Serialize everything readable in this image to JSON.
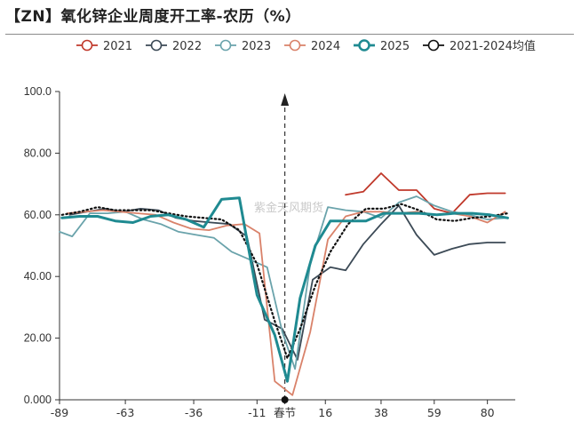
{
  "title": "【ZN】氧化锌企业周度开工率-农历（%）",
  "watermark": "紫金天风期货",
  "chart_data": {
    "type": "line",
    "title": "【ZN】氧化锌企业周度开工率-农历（%）",
    "xlabel": "",
    "ylabel": "",
    "ylim": [
      0,
      100
    ],
    "xlim": [
      -89,
      91
    ],
    "y_ticks": [
      "0.000",
      "20.00",
      "40.00",
      "60.00",
      "80.00",
      "100.0"
    ],
    "x_ticks": [
      "-89",
      "-63",
      "-36",
      "-11",
      "春节",
      "16",
      "38",
      "59",
      "80"
    ],
    "x_tick_values": [
      -89,
      -63,
      -36,
      -11,
      0,
      16,
      38,
      59,
      80
    ],
    "spring_festival_x": 0,
    "legend_position": "top",
    "grid": false,
    "series": [
      {
        "name": "2021",
        "color": "#c0392b",
        "style": "thin",
        "x": [
          24,
          31,
          38,
          45,
          52,
          59,
          66,
          73,
          80,
          87
        ],
        "y": [
          66.5,
          67.5,
          73.5,
          68,
          68,
          62,
          60.5,
          66.5,
          67,
          67
        ]
      },
      {
        "name": "2022",
        "color": "#3c4a56",
        "style": "thin",
        "x": [
          -85,
          -78,
          -71,
          -64,
          -57,
          -50,
          -43,
          -36,
          -29,
          -22,
          -15,
          -8,
          -1,
          5,
          11,
          18,
          24,
          31,
          38,
          45,
          52,
          59,
          66,
          73,
          80,
          87
        ],
        "y": [
          60,
          61,
          62,
          61,
          62,
          61.5,
          59,
          58,
          57.5,
          57,
          53,
          26,
          23,
          13,
          39,
          43,
          42,
          50.5,
          57,
          63,
          53.5,
          47,
          49,
          50.5,
          51,
          51
        ]
      },
      {
        "name": "2023",
        "color": "#6aa3ab",
        "style": "thin",
        "x": [
          -89,
          -84,
          -77,
          -70,
          -63,
          -56,
          -49,
          -42,
          -35,
          -28,
          -21,
          -14,
          -7,
          -1,
          4,
          10,
          17,
          24,
          31,
          38,
          45,
          52,
          59,
          66,
          73,
          80,
          87
        ],
        "y": [
          54.5,
          53,
          60.5,
          60.5,
          61,
          58.5,
          57,
          54.5,
          53.5,
          52.5,
          48,
          45.5,
          43,
          22,
          10,
          44,
          62.5,
          61.5,
          61,
          59,
          64,
          66,
          63,
          61,
          60,
          58.5,
          59
        ]
      },
      {
        "name": "2024",
        "color": "#d9826a",
        "style": "thin",
        "x": [
          -86,
          -79,
          -72,
          -65,
          -58,
          -51,
          -44,
          -37,
          -30,
          -23,
          -16,
          -10,
          -4,
          3,
          10,
          17,
          24,
          31,
          38,
          45,
          52,
          59,
          66,
          73,
          80,
          87
        ],
        "y": [
          60.5,
          61,
          61.5,
          61,
          60.5,
          60,
          57.5,
          55.5,
          55,
          56.5,
          57,
          54,
          6,
          1.5,
          22,
          52,
          59.5,
          61,
          61,
          60.5,
          61,
          60,
          60.5,
          59.5,
          57.5,
          61
        ]
      },
      {
        "name": "2025",
        "color": "#1f8a91",
        "style": "thick",
        "x": [
          -88,
          -81,
          -74,
          -67,
          -60,
          -53,
          -46,
          -39,
          -32,
          -25,
          -18,
          -11,
          -4,
          1,
          6,
          12,
          18,
          25,
          32,
          39,
          46,
          53,
          60,
          67,
          74,
          81,
          88
        ],
        "y": [
          59,
          59.5,
          59.5,
          58,
          57.5,
          59.5,
          60,
          58.5,
          56,
          65,
          65.5,
          34,
          21,
          6,
          33,
          50,
          58,
          58,
          58,
          60.5,
          60.5,
          60.5,
          60,
          60.5,
          60.5,
          60,
          59
        ]
      },
      {
        "name": "2021-2024均值",
        "color": "#111111",
        "style": "dotted",
        "x": [
          -88,
          -81,
          -74,
          -67,
          -60,
          -53,
          -46,
          -39,
          -32,
          -25,
          -18,
          -11,
          -4,
          1,
          6,
          12,
          18,
          25,
          32,
          39,
          46,
          53,
          60,
          67,
          74,
          81,
          88
        ],
        "y": [
          60,
          61,
          62.5,
          61.5,
          61.5,
          61.5,
          60.5,
          59.5,
          59,
          58.5,
          55,
          44,
          25.5,
          13.5,
          23,
          37,
          48,
          57,
          62,
          62,
          63.5,
          61.5,
          58.5,
          58,
          59,
          59.5,
          60.5
        ]
      }
    ]
  }
}
